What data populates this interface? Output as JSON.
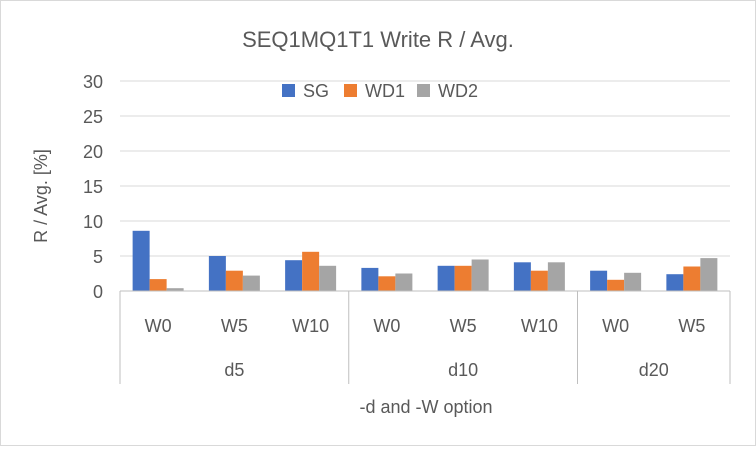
{
  "chart_data": {
    "type": "bar",
    "title": "SEQ1MQ1T1 Write R / Avg.",
    "xlabel": "-d and -W option",
    "ylabel": "R / Avg. [%]",
    "ylim": [
      0,
      30
    ],
    "yticks": [
      0,
      5,
      10,
      15,
      20,
      25,
      30
    ],
    "grid": true,
    "legend_position": "top",
    "groups": [
      {
        "label": "d5",
        "categories": [
          "W0",
          "W5",
          "W10"
        ]
      },
      {
        "label": "d10",
        "categories": [
          "W0",
          "W5",
          "W10"
        ]
      },
      {
        "label": "d20",
        "categories": [
          "W0",
          "W5"
        ]
      }
    ],
    "categories": [
      "W0",
      "W5",
      "W10",
      "W0",
      "W5",
      "W10",
      "W0",
      "W5"
    ],
    "series": [
      {
        "name": "SG",
        "color": "#4472c4",
        "values": [
          8.6,
          5.0,
          4.4,
          3.3,
          3.6,
          4.1,
          2.9,
          2.4
        ]
      },
      {
        "name": "WD1",
        "color": "#ed7d31",
        "values": [
          1.7,
          2.9,
          5.6,
          2.1,
          3.6,
          2.9,
          1.6,
          3.5
        ]
      },
      {
        "name": "WD2",
        "color": "#a5a5a5",
        "values": [
          0.4,
          2.2,
          3.6,
          2.5,
          4.5,
          4.1,
          2.6,
          4.7
        ]
      }
    ]
  }
}
